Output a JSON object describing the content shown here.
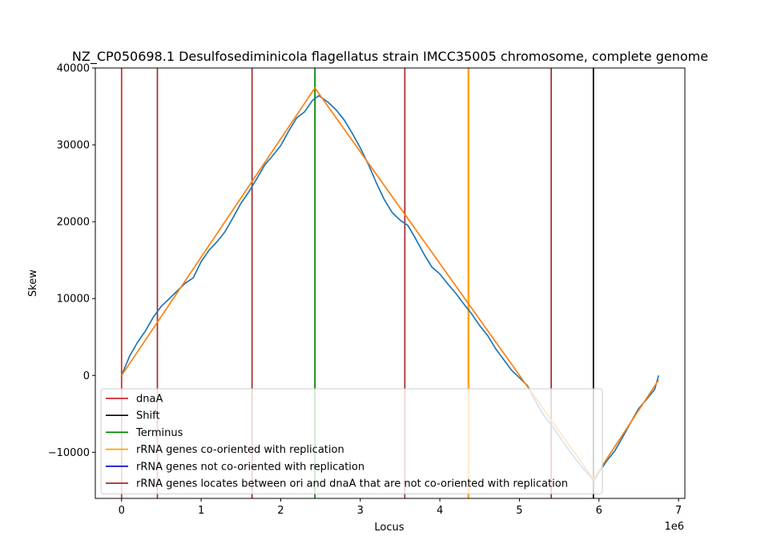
{
  "chart_data": {
    "type": "line",
    "title": "NZ_CP050698.1 Desulfosediminicola flagellatus strain IMCC35005 chromosome, complete genome",
    "xlabel": "Locus",
    "ylabel": "Skew",
    "x_offset_label": "1e6",
    "xlim": [
      -330000,
      7080000
    ],
    "ylim": [
      -16000,
      40000
    ],
    "x_ticks": [
      0,
      1000000,
      2000000,
      3000000,
      4000000,
      5000000,
      6000000,
      7000000
    ],
    "x_tick_labels": [
      "0",
      "1",
      "2",
      "3",
      "4",
      "5",
      "6",
      "7"
    ],
    "y_ticks": [
      -10000,
      0,
      10000,
      20000,
      30000,
      40000
    ],
    "y_tick_labels": [
      "−10000",
      "0",
      "10000",
      "20000",
      "30000",
      "40000"
    ],
    "grid": false,
    "legend_position": "lower-left",
    "series": [
      {
        "name": "",
        "color": "#1f77b4",
        "x": [
          0,
          100000,
          200000,
          300000,
          400000,
          500000,
          600000,
          700000,
          800000,
          900000,
          1000000,
          1100000,
          1200000,
          1300000,
          1400000,
          1500000,
          1600000,
          1700000,
          1800000,
          1900000,
          2000000,
          2100000,
          2200000,
          2300000,
          2400000,
          2480000,
          2600000,
          2700000,
          2800000,
          2900000,
          3000000,
          3100000,
          3200000,
          3300000,
          3400000,
          3500000,
          3600000,
          3700000,
          3800000,
          3900000,
          4000000,
          4100000,
          4200000,
          4300000,
          4400000,
          4500000,
          4600000,
          4700000,
          4800000,
          4900000,
          5000000,
          5100000,
          5200000,
          5300000,
          5400000,
          5500000,
          5600000,
          5700000,
          5800000,
          5900000,
          5930000,
          6000000,
          6100000,
          6200000,
          6300000,
          6400000,
          6500000,
          6600000,
          6700000,
          6750000
        ],
        "y": [
          0,
          2500,
          4300,
          5800,
          7600,
          9000,
          10000,
          11000,
          12000,
          12700,
          14800,
          16300,
          17400,
          18700,
          20500,
          22400,
          23900,
          25600,
          27400,
          28600,
          29900,
          31800,
          33500,
          34300,
          35800,
          36400,
          35500,
          34500,
          33200,
          31500,
          29600,
          27500,
          25100,
          22900,
          21200,
          20200,
          19500,
          17700,
          15800,
          14100,
          13200,
          11900,
          10700,
          9300,
          8000,
          6500,
          5200,
          3500,
          2100,
          700,
          -300,
          -1300,
          -3300,
          -5100,
          -6400,
          -7900,
          -9400,
          -10800,
          -12100,
          -13200,
          -13800,
          -12600,
          -11100,
          -9800,
          -8000,
          -6100,
          -4300,
          -3100,
          -1800,
          0
        ]
      },
      {
        "name": "",
        "color": "#ff7f0e",
        "x": [
          0,
          2430000,
          5930000,
          6750000
        ],
        "y": [
          0,
          37400,
          -13500,
          -600
        ]
      }
    ],
    "vertical_lines": [
      {
        "x": 0,
        "color": "#d62728",
        "category": "dnaA"
      },
      {
        "x": 450000,
        "color": "#a52a2a",
        "category": "rRNA genes locates between ori and dnaA that are not co-oriented with replication"
      },
      {
        "x": 1640000,
        "color": "#a52a2a",
        "category": "rRNA genes locates between ori and dnaA that are not co-oriented with replication"
      },
      {
        "x": 2430000,
        "color": "#008000",
        "category": "Terminus"
      },
      {
        "x": 3560000,
        "color": "#a52a2a",
        "category": "rRNA genes locates between ori and dnaA that are not co-oriented with replication"
      },
      {
        "x": 4360000,
        "color": "#ffa500",
        "category": "rRNA genes co-oriented with replication"
      },
      {
        "x": 5400000,
        "color": "#a52a2a",
        "category": "rRNA genes locates between ori and dnaA that are not co-oriented with replication"
      },
      {
        "x": 5930000,
        "color": "#000000",
        "category": "Shift"
      }
    ],
    "legend": [
      {
        "label": "dnaA",
        "color": "#d62728"
      },
      {
        "label": "Shift",
        "color": "#000000"
      },
      {
        "label": "Terminus",
        "color": "#008000"
      },
      {
        "label": "rRNA genes co-oriented with replication",
        "color": "#ffa500"
      },
      {
        "label": "rRNA genes not co-oriented with replication",
        "color": "#0000cd"
      },
      {
        "label": "rRNA genes locates between ori and dnaA that are not co-oriented with replication",
        "color": "#a52a2a"
      }
    ]
  }
}
